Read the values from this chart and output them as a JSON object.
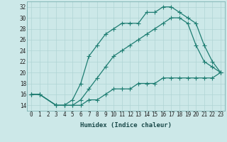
{
  "xlabel": "Humidex (Indice chaleur)",
  "bg_color": "#cce8e8",
  "line_color": "#1e7d72",
  "grid_color": "#b0d4d4",
  "xmin": -0.5,
  "xmax": 23.5,
  "ymin": 13,
  "ymax": 33,
  "line1_x": [
    0,
    1,
    3,
    4,
    5,
    6,
    7,
    8,
    9,
    10,
    11,
    12,
    13,
    14,
    15,
    16,
    17,
    18,
    19,
    20,
    21,
    22,
    23
  ],
  "line1_y": [
    16,
    16,
    14,
    14,
    15,
    18,
    23,
    25,
    27,
    28,
    29,
    29,
    29,
    31,
    31,
    32,
    32,
    31,
    30,
    29,
    25,
    22,
    20
  ],
  "line2_x": [
    0,
    1,
    3,
    4,
    5,
    6,
    7,
    8,
    9,
    10,
    11,
    12,
    13,
    14,
    15,
    16,
    17,
    18,
    19,
    20,
    21,
    22,
    23
  ],
  "line2_y": [
    16,
    16,
    14,
    14,
    14,
    15,
    17,
    19,
    21,
    23,
    24,
    25,
    26,
    27,
    28,
    29,
    30,
    30,
    29,
    25,
    22,
    21,
    20
  ],
  "line3_x": [
    0,
    1,
    3,
    4,
    5,
    6,
    7,
    8,
    9,
    10,
    11,
    12,
    13,
    14,
    15,
    16,
    17,
    18,
    19,
    20,
    21,
    22,
    23
  ],
  "line3_y": [
    16,
    16,
    14,
    14,
    14,
    14,
    15,
    15,
    16,
    17,
    17,
    17,
    18,
    18,
    18,
    19,
    19,
    19,
    19,
    19,
    19,
    19,
    20
  ],
  "yticks": [
    14,
    16,
    18,
    20,
    22,
    24,
    26,
    28,
    30,
    32
  ],
  "xtick_labels": [
    "0",
    "1",
    "2",
    "3",
    "4",
    "5",
    "6",
    "7",
    "8",
    "9",
    "10",
    "11",
    "12",
    "13",
    "14",
    "15",
    "16",
    "17",
    "18",
    "19",
    "20",
    "21",
    "22",
    "23"
  ],
  "marker": "+",
  "markersize": 4,
  "linewidth": 0.9,
  "xlabel_fontsize": 6.5,
  "tick_fontsize": 5.5
}
